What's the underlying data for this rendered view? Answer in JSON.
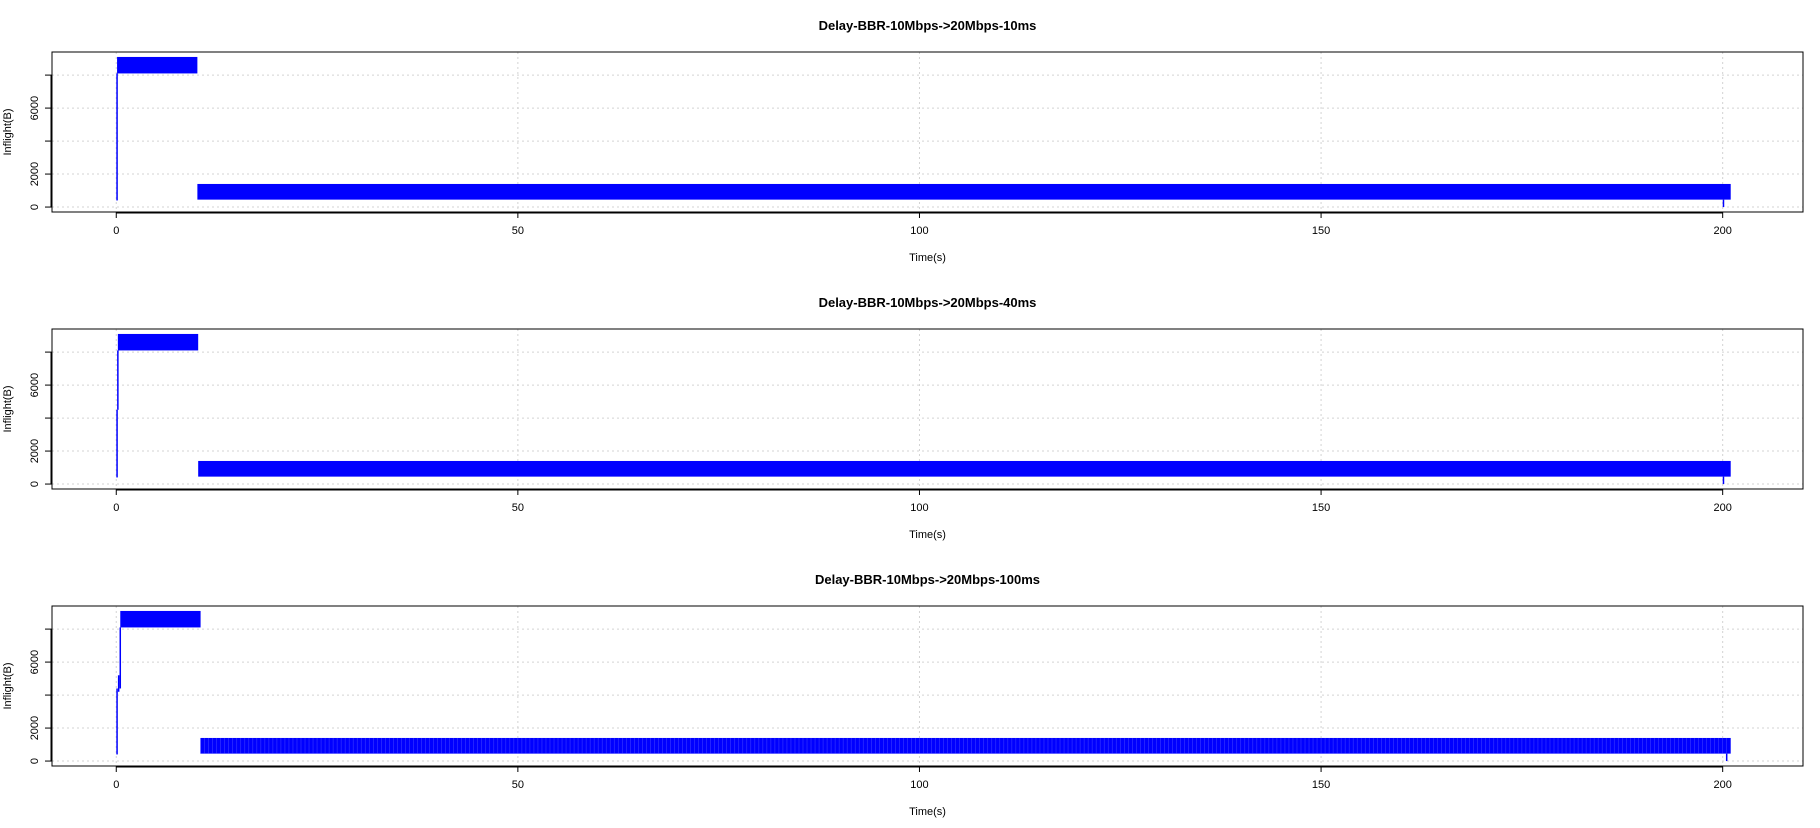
{
  "chart_data": [
    {
      "type": "area",
      "title": "Delay-BBR-10Mbps->20Mbps-10ms",
      "xlabel": "Time(s)",
      "ylabel": "Inflight(B)",
      "xlim": [
        -8,
        210
      ],
      "ylim": [
        -300,
        9400
      ],
      "x_ticks": [
        0,
        50,
        100,
        150,
        200
      ],
      "y_ticks": [
        0,
        2000,
        6000
      ],
      "grid": true,
      "series": [
        {
          "color": "#0000ff",
          "bands": [
            {
              "x": [
                0.1,
                10.1
              ],
              "low": 8100,
              "high": 9100
            },
            {
              "x": [
                10.1,
                201
              ],
              "low": 450,
              "high": 1400
            }
          ],
          "spikes": [
            {
              "x": 0.1,
              "from": 400,
              "to": 8100
            },
            {
              "x": 200.1,
              "from": 0,
              "to": 450
            }
          ]
        }
      ]
    },
    {
      "type": "area",
      "title": "Delay-BBR-10Mbps->20Mbps-40ms",
      "xlabel": "Time(s)",
      "ylabel": "Inflight(B)",
      "xlim": [
        -8,
        210
      ],
      "ylim": [
        -300,
        9400
      ],
      "x_ticks": [
        0,
        50,
        100,
        150,
        200
      ],
      "y_ticks": [
        0,
        2000,
        6000
      ],
      "grid": true,
      "series": [
        {
          "color": "#0000ff",
          "bands": [
            {
              "x": [
                0.2,
                10.2
              ],
              "low": 8100,
              "high": 9100
            },
            {
              "x": [
                10.2,
                201
              ],
              "low": 450,
              "high": 1400
            }
          ],
          "spikes": [
            {
              "x": 0.1,
              "from": 400,
              "to": 4500
            },
            {
              "x": 0.2,
              "from": 4500,
              "to": 8100
            },
            {
              "x": 200.1,
              "from": 0,
              "to": 450
            }
          ]
        }
      ]
    },
    {
      "type": "area",
      "title": "Delay-BBR-10Mbps->20Mbps-100ms",
      "xlabel": "Time(s)",
      "ylabel": "Inflight(B)",
      "xlim": [
        -8,
        210
      ],
      "ylim": [
        -300,
        9400
      ],
      "x_ticks": [
        0,
        50,
        100,
        150,
        200
      ],
      "y_ticks": [
        0,
        2000,
        6000
      ],
      "grid": true,
      "series": [
        {
          "color": "#0000ff",
          "bands": [
            {
              "x": [
                0.5,
                10.5
              ],
              "low": 8100,
              "high": 9100
            },
            {
              "x": [
                10.5,
                201
              ],
              "low": 450,
              "high": 1400
            }
          ],
          "spikes": [
            {
              "x": 0.1,
              "from": 400,
              "to": 4400
            },
            {
              "x": 0.3,
              "from": 4200,
              "to": 5200
            },
            {
              "x": 0.5,
              "from": 4400,
              "to": 8100
            },
            {
              "x": 200.5,
              "from": 0,
              "to": 450
            }
          ],
          "oscillation_period_s": 0.5
        }
      ]
    }
  ]
}
